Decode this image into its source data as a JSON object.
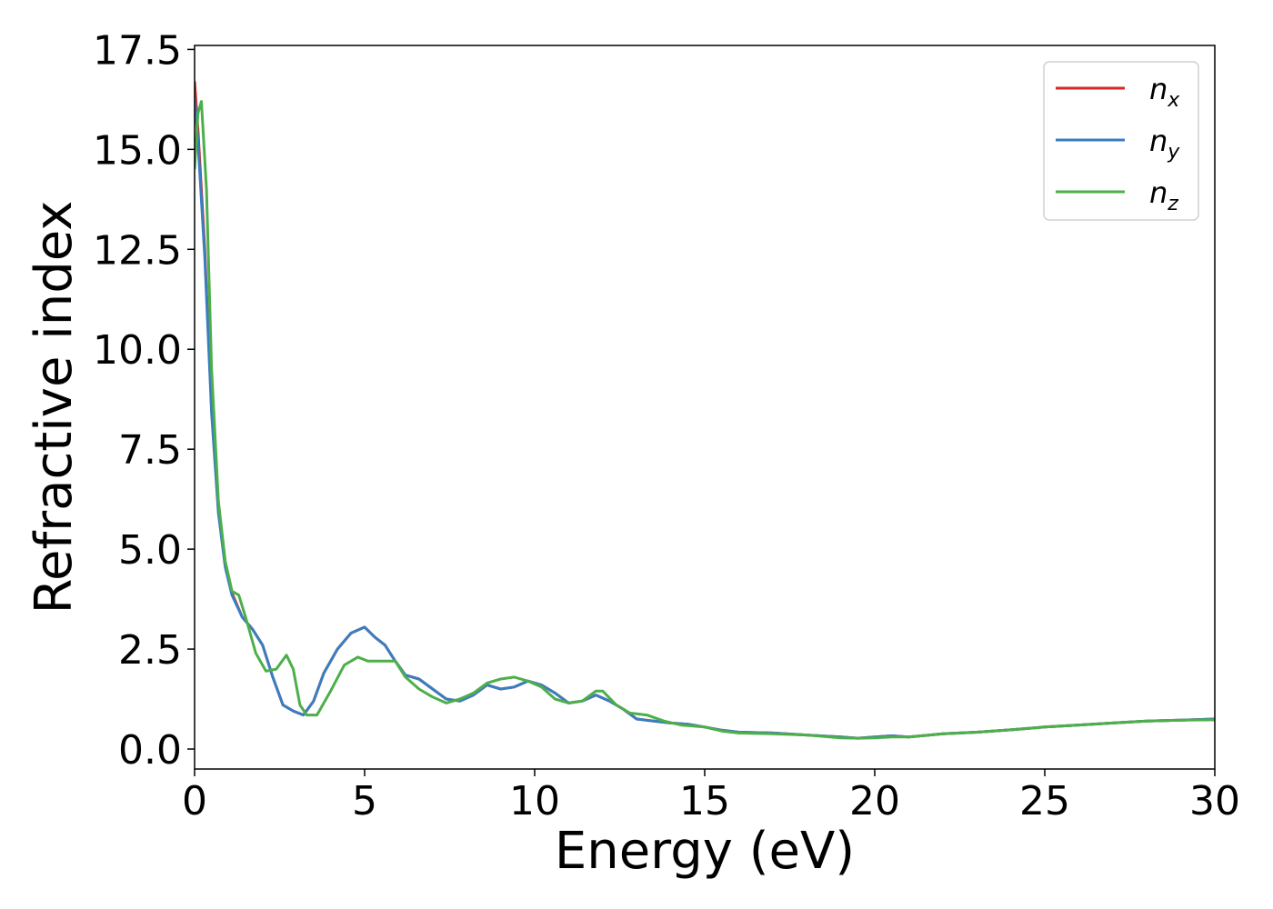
{
  "chart_data": {
    "type": "line",
    "title": "",
    "xlabel": "Energy (eV)",
    "ylabel": "Refractive index",
    "xlim": [
      0,
      30
    ],
    "ylim": [
      -0.5,
      17.6
    ],
    "xticks": [
      0,
      5,
      10,
      15,
      20,
      25,
      30
    ],
    "xtick_labels": [
      "0",
      "5",
      "10",
      "15",
      "20",
      "25",
      "30"
    ],
    "yticks": [
      0.0,
      2.5,
      5.0,
      7.5,
      10.0,
      12.5,
      15.0,
      17.5
    ],
    "ytick_labels": [
      "0.0",
      "2.5",
      "5.0",
      "7.5",
      "10.0",
      "12.5",
      "15.0",
      "17.5"
    ],
    "grid": false,
    "legend_position": "top-right",
    "series": [
      {
        "name": "n",
        "subscript": "x",
        "color": "#d62728",
        "x": [
          0,
          0.1,
          0.3,
          0.5,
          0.7,
          0.9,
          1.1,
          1.4,
          1.7,
          2.0,
          2.3,
          2.6,
          2.9,
          3.2,
          3.5,
          3.8,
          4.2,
          4.6,
          5.0,
          5.3,
          5.6,
          5.9,
          6.2,
          6.6,
          7.0,
          7.4,
          7.8,
          8.2,
          8.6,
          9.0,
          9.4,
          9.8,
          10.2,
          10.6,
          11.0,
          11.4,
          11.8,
          12.2,
          12.6,
          13.0,
          13.5,
          14.0,
          14.5,
          15.0,
          15.5,
          16.0,
          17.0,
          18.0,
          19.0,
          19.5,
          20.0,
          20.5,
          21.0,
          22.0,
          23.0,
          24.0,
          25.0,
          26.0,
          27.0,
          28.0,
          29.0,
          30.0
        ],
        "y": [
          16.7,
          15.5,
          12.5,
          8.5,
          6.0,
          4.6,
          3.9,
          3.3,
          3.0,
          2.6,
          1.8,
          1.1,
          0.95,
          0.85,
          1.2,
          1.9,
          2.5,
          2.9,
          3.05,
          2.8,
          2.6,
          2.2,
          1.85,
          1.75,
          1.5,
          1.25,
          1.2,
          1.35,
          1.6,
          1.5,
          1.55,
          1.7,
          1.6,
          1.4,
          1.15,
          1.2,
          1.35,
          1.2,
          1.0,
          0.75,
          0.7,
          0.65,
          0.62,
          0.55,
          0.47,
          0.42,
          0.4,
          0.35,
          0.3,
          0.27,
          0.3,
          0.33,
          0.3,
          0.38,
          0.42,
          0.48,
          0.55,
          0.6,
          0.65,
          0.7,
          0.72,
          0.75
        ]
      },
      {
        "name": "n",
        "subscript": "y",
        "color": "#3a7ebf",
        "x": [
          0,
          0.1,
          0.3,
          0.5,
          0.7,
          0.9,
          1.1,
          1.4,
          1.7,
          2.0,
          2.3,
          2.6,
          2.9,
          3.2,
          3.5,
          3.8,
          4.2,
          4.6,
          5.0,
          5.3,
          5.6,
          5.9,
          6.2,
          6.6,
          7.0,
          7.4,
          7.8,
          8.2,
          8.6,
          9.0,
          9.4,
          9.8,
          10.2,
          10.6,
          11.0,
          11.4,
          11.8,
          12.2,
          12.6,
          13.0,
          13.5,
          14.0,
          14.5,
          15.0,
          15.5,
          16.0,
          17.0,
          18.0,
          19.0,
          19.5,
          20.0,
          20.5,
          21.0,
          22.0,
          23.0,
          24.0,
          25.0,
          26.0,
          27.0,
          28.0,
          29.0,
          30.0
        ],
        "y": [
          16.3,
          15.2,
          12.3,
          8.4,
          5.9,
          4.55,
          3.85,
          3.3,
          3.0,
          2.6,
          1.8,
          1.1,
          0.95,
          0.85,
          1.2,
          1.9,
          2.5,
          2.9,
          3.05,
          2.8,
          2.6,
          2.2,
          1.85,
          1.75,
          1.5,
          1.25,
          1.2,
          1.35,
          1.6,
          1.5,
          1.55,
          1.7,
          1.6,
          1.4,
          1.15,
          1.2,
          1.35,
          1.2,
          1.0,
          0.75,
          0.7,
          0.65,
          0.62,
          0.55,
          0.47,
          0.42,
          0.4,
          0.35,
          0.3,
          0.27,
          0.3,
          0.33,
          0.3,
          0.38,
          0.42,
          0.48,
          0.55,
          0.6,
          0.65,
          0.7,
          0.72,
          0.75
        ]
      },
      {
        "name": "n",
        "subscript": "z",
        "color": "#4daf4a",
        "x": [
          0,
          0.1,
          0.2,
          0.35,
          0.5,
          0.7,
          0.9,
          1.1,
          1.3,
          1.5,
          1.8,
          2.1,
          2.4,
          2.7,
          2.9,
          3.1,
          3.3,
          3.6,
          4.0,
          4.4,
          4.8,
          5.1,
          5.5,
          5.9,
          6.2,
          6.6,
          7.0,
          7.4,
          7.8,
          8.2,
          8.6,
          9.0,
          9.4,
          9.8,
          10.2,
          10.6,
          11.0,
          11.4,
          11.8,
          12.0,
          12.4,
          12.8,
          13.3,
          13.8,
          14.3,
          15.0,
          15.5,
          16.0,
          17.0,
          18.0,
          19.0,
          19.5,
          20.0,
          20.5,
          21.0,
          22.0,
          23.0,
          24.0,
          25.0,
          26.0,
          27.0,
          28.0,
          29.0,
          30.0
        ],
        "y": [
          14.5,
          15.9,
          16.2,
          14.0,
          9.5,
          6.2,
          4.7,
          3.95,
          3.85,
          3.3,
          2.4,
          1.95,
          2.0,
          2.35,
          2.0,
          1.1,
          0.85,
          0.85,
          1.45,
          2.1,
          2.3,
          2.2,
          2.2,
          2.2,
          1.8,
          1.5,
          1.3,
          1.15,
          1.25,
          1.4,
          1.65,
          1.75,
          1.8,
          1.7,
          1.55,
          1.25,
          1.15,
          1.2,
          1.45,
          1.45,
          1.1,
          0.9,
          0.85,
          0.7,
          0.6,
          0.55,
          0.45,
          0.4,
          0.38,
          0.35,
          0.28,
          0.27,
          0.28,
          0.3,
          0.3,
          0.38,
          0.42,
          0.48,
          0.55,
          0.6,
          0.65,
          0.7,
          0.72,
          0.73
        ]
      }
    ]
  }
}
